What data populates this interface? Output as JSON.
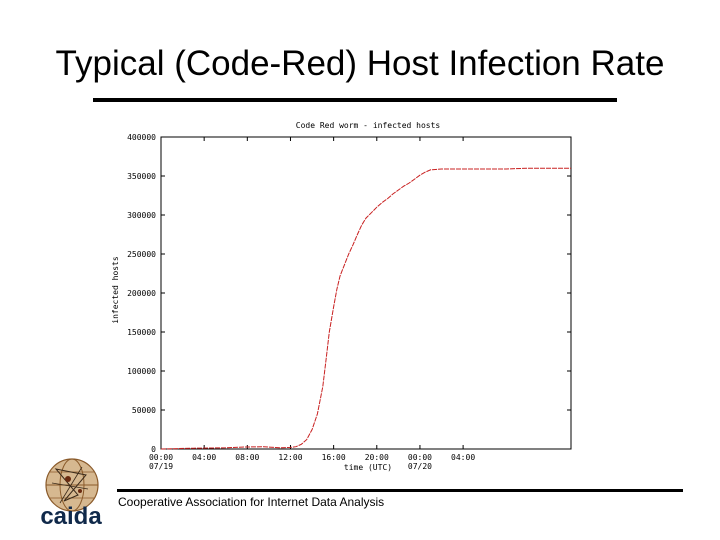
{
  "slide": {
    "title": "Typical (Code-Red) Host Infection Rate",
    "footer": "Cooperative Association for Internet Data Analysis",
    "logo_text": "caida",
    "colors": {
      "title_rule": "#000000",
      "logo": "#10294a",
      "curve": "#c82020"
    }
  },
  "chart_data": {
    "type": "line",
    "title": "Code Red worm - infected hosts",
    "xlabel": "time (UTC)",
    "ylabel": "infected hosts",
    "ylim": [
      0,
      400000
    ],
    "xlim": [
      0,
      38
    ],
    "grid": false,
    "yticks": [
      0,
      50000,
      100000,
      150000,
      200000,
      250000,
      300000,
      350000,
      400000
    ],
    "ytick_labels": [
      "0",
      "50000",
      "100000",
      "150000",
      "200000",
      "250000",
      "300000",
      "350000",
      "400000"
    ],
    "xticks": [
      0,
      4,
      8,
      12,
      16,
      20,
      24,
      28
    ],
    "xtick_labels": [
      "00:00\n07/19",
      "04:00",
      "08:00",
      "12:00",
      "16:00",
      "20:00",
      "00:00\n07/20",
      "04:00"
    ],
    "series": [
      {
        "color": "#c82020",
        "x": [
          0,
          3,
          6,
          7.5,
          9.5,
          11,
          12,
          12.5,
          13,
          13.5,
          14,
          14.5,
          15,
          15.3,
          15.6,
          16,
          16.3,
          16.6,
          17,
          17.4,
          17.8,
          18.2,
          18.6,
          19,
          19.5,
          20,
          20.5,
          21,
          21.5,
          22,
          22.5,
          23,
          23.5,
          24,
          24.5,
          25,
          26,
          28,
          30,
          32,
          34,
          36,
          38
        ],
        "y": [
          0,
          1000,
          1500,
          2500,
          3000,
          1500,
          2000,
          3000,
          6000,
          12000,
          25000,
          45000,
          80000,
          115000,
          150000,
          182000,
          205000,
          222000,
          236000,
          250000,
          262000,
          275000,
          287000,
          296000,
          303000,
          310000,
          316000,
          321000,
          327000,
          332000,
          337000,
          341000,
          346000,
          351000,
          355000,
          358000,
          359000,
          359000,
          359000,
          359000,
          360000,
          360000,
          360000
        ]
      }
    ]
  }
}
